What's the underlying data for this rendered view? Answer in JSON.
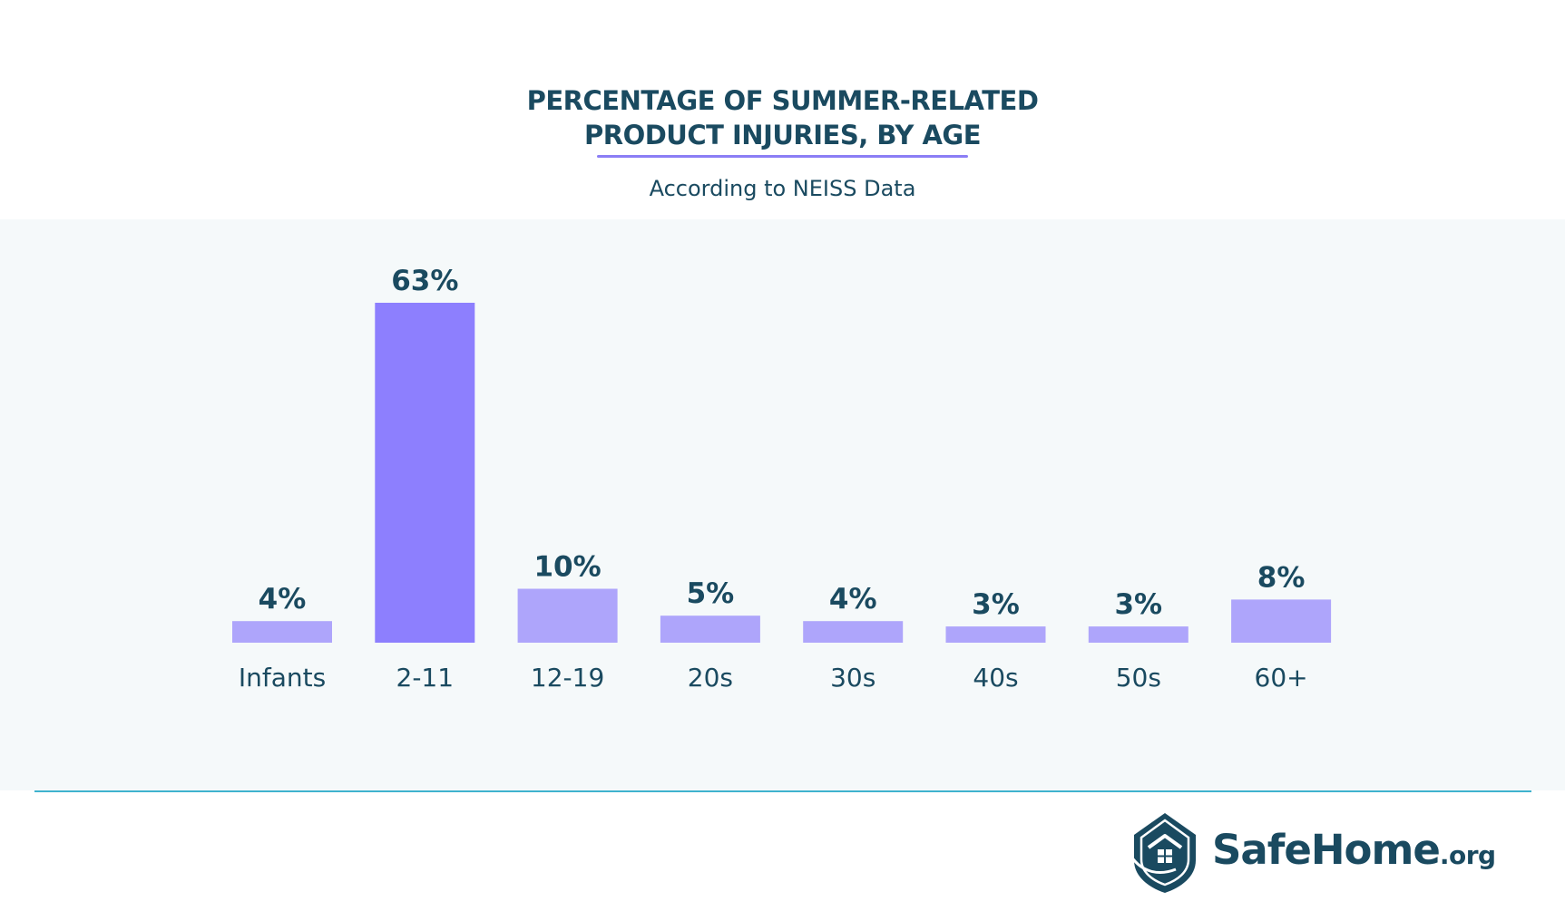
{
  "header": {
    "title_line1": "PERCENTAGE OF SUMMER-RELATED",
    "title_line2": "PRODUCT INJURIES, BY AGE",
    "subtitle": "According to NEISS Data"
  },
  "chart_data": {
    "type": "bar",
    "title": "PERCENTAGE OF SUMMER-RELATED PRODUCT INJURIES, BY AGE",
    "subtitle": "According to NEISS Data",
    "categories": [
      "Infants",
      "2-11",
      "12-19",
      "20s",
      "30s",
      "40s",
      "50s",
      "60+"
    ],
    "values": [
      4,
      63,
      10,
      5,
      4,
      3,
      3,
      8
    ],
    "value_labels": [
      "4%",
      "63%",
      "10%",
      "5%",
      "4%",
      "3%",
      "3%",
      "8%"
    ],
    "unit": "%",
    "ylim": [
      0,
      63
    ],
    "grid": false,
    "legend": "none",
    "highlight_index": 1,
    "colors": {
      "bar": "#aea5fb",
      "highlight": "#8d7ffe",
      "value_label": "#1a4a60",
      "category_label": "#1a4a60"
    }
  },
  "colors": {
    "panel_background": "#f5f9fa",
    "divider": "#3fb2ce",
    "title": "#1a4a60",
    "accent_underline": "#8b7ef5"
  },
  "logo": {
    "name": "SafeHome",
    "tld": ".org",
    "icon": "house-shield-icon"
  }
}
